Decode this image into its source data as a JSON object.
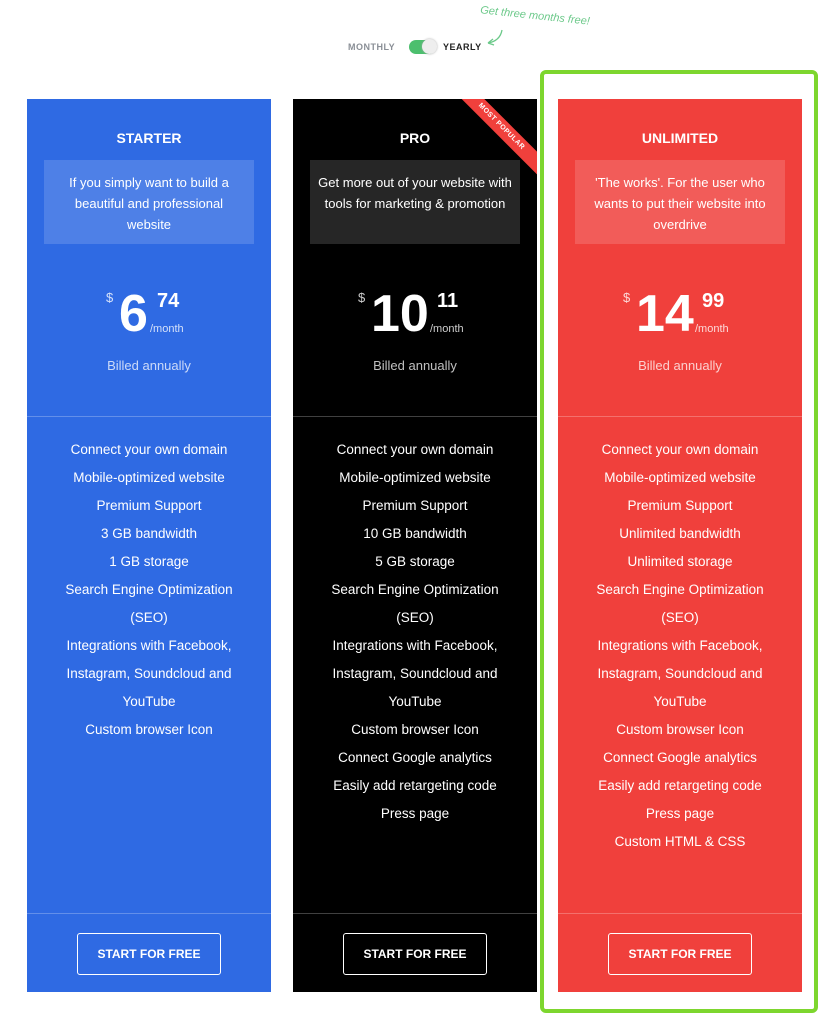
{
  "billing_toggle": {
    "monthly": "MONTHLY",
    "yearly": "YEARLY",
    "selected": "yearly",
    "promo": "Get three months free!"
  },
  "colors": {
    "starter": "#2f6ae3",
    "pro": "#000000",
    "unlimited": "#f0403c",
    "highlight": "#7dd62e",
    "toggle": "#4cbf6e"
  },
  "plans": [
    {
      "name": "STARTER",
      "description": "If you simply want to build a beautiful and professional website",
      "currency": "$",
      "dollars": "6",
      "cents": "74",
      "period": "/month",
      "billing": "Billed annually",
      "features": [
        "Connect your own domain",
        "Mobile-optimized website",
        "Premium Support",
        "3 GB bandwidth",
        "1 GB storage",
        "Search Engine Optimization (SEO)",
        "Integrations with Facebook, Instagram, Soundcloud and YouTube",
        "Custom browser Icon"
      ],
      "cta": "START FOR FREE"
    },
    {
      "name": "PRO",
      "badge": "MOST POPULAR",
      "description": "Get more out of your website with tools for marketing & promotion",
      "currency": "$",
      "dollars": "10",
      "cents": "11",
      "period": "/month",
      "billing": "Billed annually",
      "features": [
        "Connect your own domain",
        "Mobile-optimized website",
        "Premium Support",
        "10 GB bandwidth",
        "5 GB storage",
        "Search Engine Optimization (SEO)",
        "Integrations with Facebook, Instagram, Soundcloud and YouTube",
        "Custom browser Icon",
        "Connect Google analytics",
        "Easily add retargeting code",
        "Press page"
      ],
      "cta": "START FOR FREE"
    },
    {
      "name": "UNLIMITED",
      "description": "'The works'. For the user who wants to put their website into overdrive",
      "currency": "$",
      "dollars": "14",
      "cents": "99",
      "period": "/month",
      "billing": "Billed annually",
      "features": [
        "Connect your own domain",
        "Mobile-optimized website",
        "Premium Support",
        "Unlimited bandwidth",
        "Unlimited storage",
        "Search Engine Optimization (SEO)",
        "Integrations with Facebook, Instagram, Soundcloud and YouTube",
        "Custom browser Icon",
        "Connect Google analytics",
        "Easily add retargeting code",
        "Press page",
        "Custom HTML & CSS"
      ],
      "cta": "START FOR FREE"
    }
  ]
}
